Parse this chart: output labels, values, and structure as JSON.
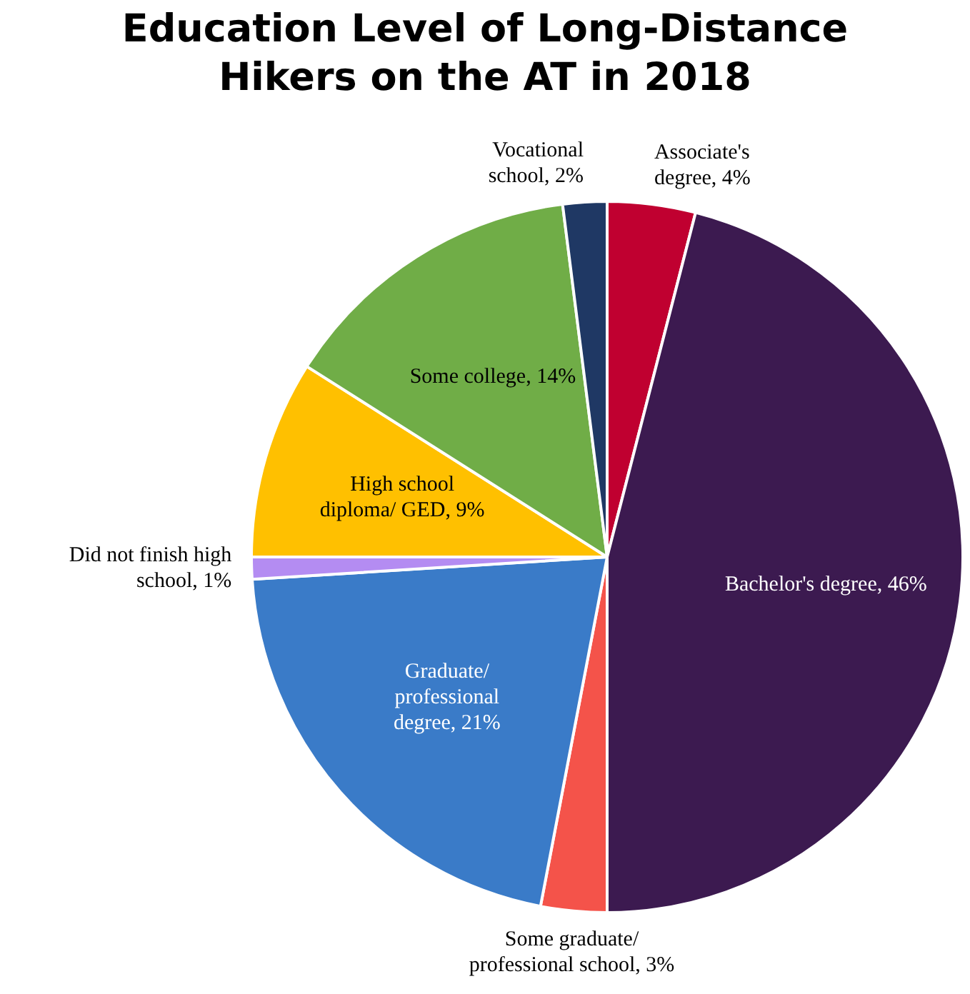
{
  "chart_data": {
    "type": "pie",
    "title": "Education Level of Long-Distance Hikers on the AT in 2018",
    "categories": [
      "Associate's degree",
      "Bachelor's degree",
      "Some graduate/ professional school",
      "Graduate/ professional degree",
      "Did not finish high school",
      "High school diploma/ GED",
      "Some college",
      "Vocational school"
    ],
    "values": [
      4,
      46,
      3,
      21,
      1,
      9,
      14,
      2
    ],
    "value_labels": [
      "4%",
      "46%",
      "3%",
      "21%",
      "1%",
      "9%",
      "14%",
      "2%"
    ],
    "colors": [
      "#c00030",
      "#3c1a50",
      "#f4534a",
      "#3a7bc8",
      "#b48cf2",
      "#ffc000",
      "#70ad47",
      "#1f3864"
    ],
    "legend": false
  }
}
